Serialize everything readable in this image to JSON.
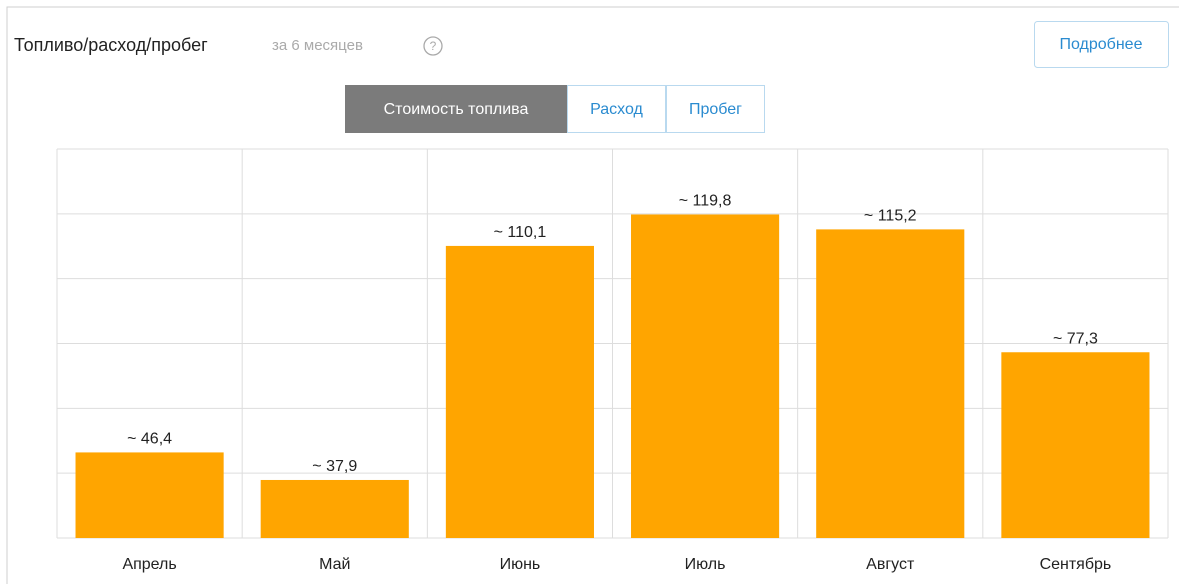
{
  "header": {
    "title": "Топливо/расход/пробег",
    "period": "за 6 месяцев",
    "help": "?",
    "more_button": "Подробнее"
  },
  "tabs": [
    "Стоимость топлива",
    "Расход",
    "Пробег"
  ],
  "active_tab": 0,
  "chart_data": {
    "type": "bar",
    "categories": [
      "Апрель",
      "Май",
      "Июнь",
      "Июль",
      "Август",
      "Сентябрь"
    ],
    "values": [
      46.4,
      37.9,
      110.1,
      119.8,
      115.2,
      77.3
    ],
    "value_labels": [
      "~ 46,4",
      "~ 37,9",
      "~ 110,1",
      "~ 119,8",
      "~ 115,2",
      "~ 77,3"
    ],
    "color": "#ffa500",
    "ylim": [
      20,
      140
    ],
    "yticks": [
      20,
      40,
      60,
      80,
      100,
      120,
      140
    ],
    "grid": true
  }
}
